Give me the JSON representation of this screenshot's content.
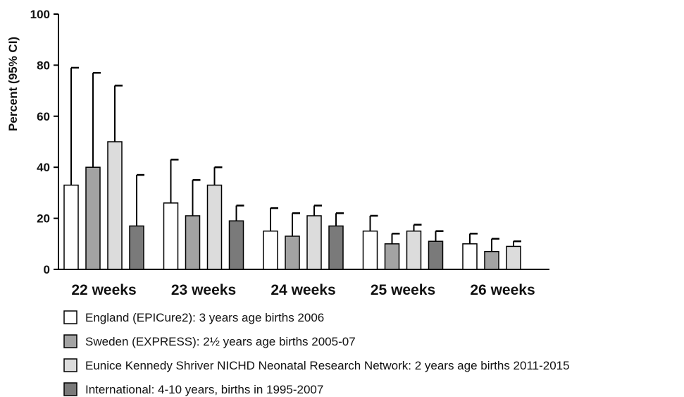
{
  "chart_data": {
    "type": "bar",
    "ylabel": "Percent (95% CI)",
    "ylim": [
      0,
      100
    ],
    "yticks": [
      0,
      20,
      40,
      60,
      80,
      100
    ],
    "grid": false,
    "legend_placement": "bottom",
    "categories": [
      "22 weeks",
      "23 weeks",
      "24 weeks",
      "25 weeks",
      "26 weeks"
    ],
    "series": [
      {
        "name": "England (EPICure2): 3 years age births 2006",
        "color": "#ffffff",
        "values": [
          33,
          26,
          15,
          15,
          10
        ],
        "ci_upper": [
          79,
          43,
          24,
          21,
          14
        ]
      },
      {
        "name": "Sweden (EXPRESS): 2½ years age  births 2005-07",
        "color": "#a3a3a3",
        "values": [
          40,
          21,
          13,
          10,
          7
        ],
        "ci_upper": [
          77,
          35,
          22,
          14,
          12
        ]
      },
      {
        "name": "Eunice Kennedy Shriver NICHD Neonatal Research Network: 2 years age births 2011-2015",
        "color": "#dcdcdc",
        "values": [
          50,
          33,
          21,
          15,
          9
        ],
        "ci_upper": [
          72,
          40,
          25,
          17.5,
          11
        ]
      },
      {
        "name": "International: 4-10 years, births in 1995-2007",
        "color": "#7a7a7a",
        "values": [
          17,
          19,
          17,
          11,
          null
        ],
        "ci_upper": [
          37,
          25,
          22,
          15,
          null
        ]
      }
    ]
  }
}
